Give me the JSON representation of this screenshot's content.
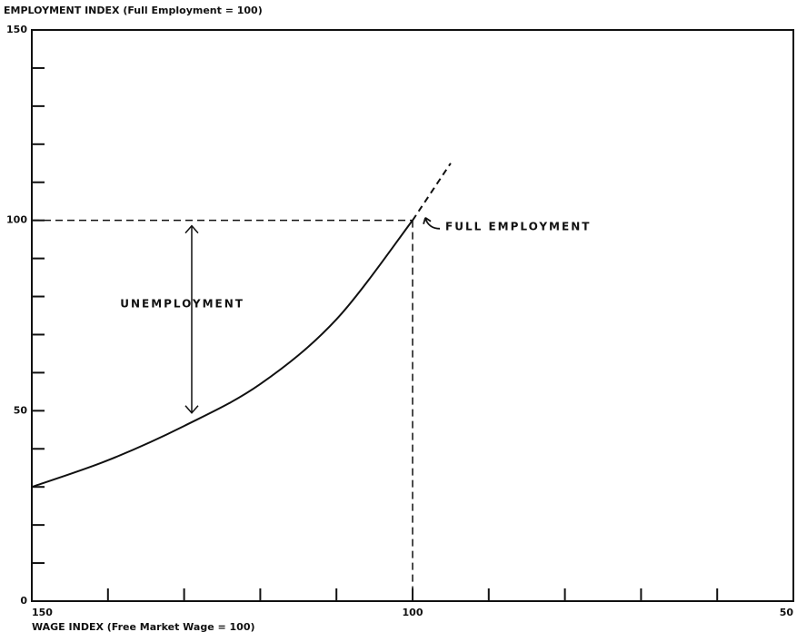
{
  "chart_data": {
    "type": "line",
    "title": "EMPLOYMENT INDEX (Full Employment = 100)",
    "x_label": "WAGE INDEX (Free Market Wage = 100)",
    "xlim": [
      150,
      50
    ],
    "ylim": [
      0,
      150
    ],
    "xticks": [
      150,
      100,
      50
    ],
    "yticks": [
      0,
      50,
      100,
      150
    ],
    "xminorticks": [
      140,
      130,
      120,
      110,
      90,
      80,
      70,
      60
    ],
    "yminorticks": [
      10,
      20,
      30,
      40,
      60,
      70,
      80,
      90,
      110,
      120,
      130,
      140
    ],
    "series": [
      {
        "color": "#111111",
        "dash": false,
        "x": [
          150,
          140,
          130,
          120,
          110,
          100
        ],
        "values": [
          30,
          37,
          46,
          57,
          74,
          100
        ]
      },
      {
        "color": "#111111",
        "dash": true,
        "x": [
          100,
          95
        ],
        "values": [
          100,
          115
        ]
      }
    ],
    "reference": {
      "x": 100,
      "y": 100
    },
    "annotations": [
      {
        "text": "FULL EMPLOYMENT",
        "x": 95.7,
        "y": 98.3,
        "hook": true
      },
      {
        "text": "UNEMPLOYMENT",
        "x": 138.4,
        "y": 78
      }
    ],
    "arrow": {
      "x": 129,
      "y1": 100,
      "y2": 48
    }
  }
}
